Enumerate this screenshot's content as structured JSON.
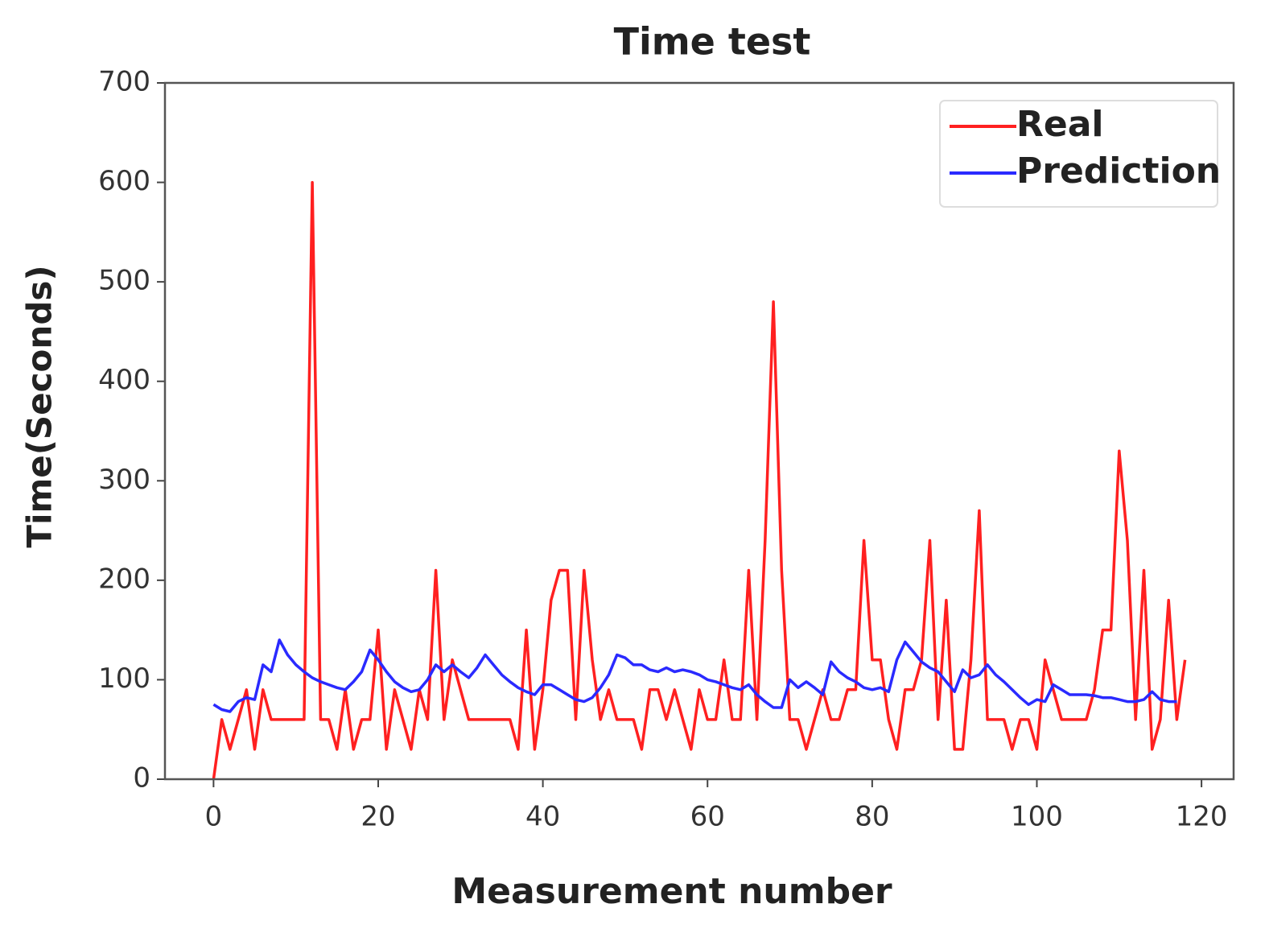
{
  "chart_data": {
    "type": "line",
    "title": "Time test",
    "x_label": "Measurement number",
    "y_label": "Time(Seconds)",
    "xlim": [
      -5.9,
      123.9
    ],
    "ylim": [
      0,
      700
    ],
    "xticks": [
      0,
      20,
      40,
      60,
      80,
      100,
      120
    ],
    "yticks": [
      0,
      100,
      200,
      300,
      400,
      500,
      600,
      700
    ],
    "legend": "upper right",
    "series": [
      {
        "name": "Real",
        "color": "#ff2020",
        "x": [
          0,
          1,
          2,
          3,
          4,
          5,
          6,
          7,
          8,
          9,
          10,
          11,
          12,
          13,
          14,
          15,
          16,
          17,
          18,
          19,
          20,
          21,
          22,
          23,
          24,
          25,
          26,
          27,
          28,
          29,
          30,
          31,
          32,
          33,
          34,
          35,
          36,
          37,
          38,
          39,
          40,
          41,
          42,
          43,
          44,
          45,
          46,
          47,
          48,
          49,
          50,
          51,
          52,
          53,
          54,
          55,
          56,
          57,
          58,
          59,
          60,
          61,
          62,
          63,
          64,
          65,
          66,
          67,
          68,
          69,
          70,
          71,
          72,
          73,
          74,
          75,
          76,
          77,
          78,
          79,
          80,
          81,
          82,
          83,
          84,
          85,
          86,
          87,
          88,
          89,
          90,
          91,
          92,
          93,
          94,
          95,
          96,
          97,
          98,
          99,
          100,
          101,
          102,
          103,
          104,
          105,
          106,
          107,
          108,
          109,
          110,
          111,
          112,
          113,
          114,
          115,
          116,
          117,
          118
        ],
        "values": [
          0,
          60,
          30,
          60,
          90,
          30,
          90,
          60,
          60,
          60,
          60,
          60,
          600,
          60,
          60,
          30,
          90,
          30,
          60,
          60,
          150,
          30,
          90,
          60,
          30,
          90,
          60,
          210,
          60,
          120,
          90,
          60,
          60,
          60,
          60,
          60,
          60,
          30,
          150,
          30,
          90,
          180,
          210,
          210,
          60,
          210,
          120,
          60,
          90,
          60,
          60,
          60,
          30,
          90,
          90,
          60,
          90,
          60,
          30,
          90,
          60,
          60,
          120,
          60,
          60,
          210,
          60,
          240,
          480,
          210,
          60,
          60,
          30,
          60,
          90,
          60,
          60,
          90,
          90,
          240,
          120,
          120,
          60,
          30,
          90,
          90,
          120,
          240,
          60,
          180,
          30,
          30,
          120,
          270,
          60,
          60,
          60,
          30,
          60,
          60,
          30,
          120,
          90,
          60,
          60,
          60,
          60,
          90,
          150,
          150,
          330,
          240,
          60,
          210,
          30,
          60,
          180,
          60,
          120
        ]
      },
      {
        "name": "Prediction",
        "color": "#2a2aff",
        "x": [
          0,
          1,
          2,
          3,
          4,
          5,
          6,
          7,
          8,
          9,
          10,
          11,
          12,
          13,
          14,
          15,
          16,
          17,
          18,
          19,
          20,
          21,
          22,
          23,
          24,
          25,
          26,
          27,
          28,
          29,
          30,
          31,
          32,
          33,
          34,
          35,
          36,
          37,
          38,
          39,
          40,
          41,
          42,
          43,
          44,
          45,
          46,
          47,
          48,
          49,
          50,
          51,
          52,
          53,
          54,
          55,
          56,
          57,
          58,
          59,
          60,
          61,
          62,
          63,
          64,
          65,
          66,
          67,
          68,
          69,
          70,
          71,
          72,
          73,
          74,
          75,
          76,
          77,
          78,
          79,
          80,
          81,
          82,
          83,
          84,
          85,
          86,
          87,
          88,
          89,
          90,
          91,
          92,
          93,
          94,
          95,
          96,
          97,
          98,
          99,
          100,
          101,
          102,
          103,
          104,
          105,
          106,
          107,
          108,
          109,
          110,
          111,
          112,
          113,
          114,
          115,
          116,
          117
        ],
        "values": [
          75,
          70,
          68,
          78,
          82,
          80,
          115,
          108,
          140,
          125,
          115,
          108,
          102,
          98,
          95,
          92,
          90,
          98,
          108,
          130,
          120,
          108,
          98,
          92,
          88,
          90,
          100,
          115,
          108,
          115,
          108,
          102,
          112,
          125,
          115,
          105,
          98,
          92,
          88,
          85,
          95,
          95,
          90,
          85,
          80,
          78,
          82,
          92,
          105,
          125,
          122,
          115,
          115,
          110,
          108,
          112,
          108,
          110,
          108,
          105,
          100,
          98,
          95,
          92,
          90,
          95,
          85,
          78,
          72,
          72,
          100,
          92,
          98,
          92,
          85,
          118,
          108,
          102,
          98,
          92,
          90,
          92,
          88,
          120,
          138,
          128,
          118,
          112,
          108,
          98,
          88,
          110,
          102,
          105,
          115,
          105,
          98,
          90,
          82,
          75,
          80,
          78,
          95,
          90,
          85,
          85,
          85,
          84,
          82,
          82,
          80,
          78,
          78,
          80,
          88,
          80,
          78,
          78
        ]
      }
    ]
  }
}
